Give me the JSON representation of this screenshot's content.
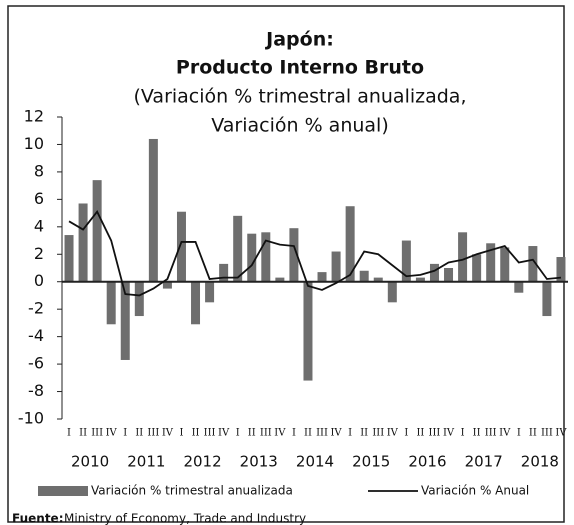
{
  "chart_data": {
    "type": "bar_line",
    "title_lines": [
      "Japón:",
      "Producto Interno Bruto"
    ],
    "subtitle_lines": [
      "(Variación % trimestral anualizada,",
      "Variación % anual)"
    ],
    "categories": [
      "I",
      "II",
      "III",
      "IV",
      "I",
      "II",
      "III",
      "IV",
      "I",
      "II",
      "III",
      "IV",
      "I",
      "II",
      "III",
      "IV",
      "I",
      "II",
      "III",
      "IV",
      "I",
      "II",
      "III",
      "IV",
      "I",
      "II",
      "III",
      "IV",
      "I",
      "II",
      "III",
      "IV",
      "I",
      "II",
      "III",
      "IV"
    ],
    "groups": [
      "2010",
      "2011",
      "2012",
      "2013",
      "2014",
      "2015",
      "2016",
      "2017",
      "2018"
    ],
    "series": [
      {
        "name": "Variación % trimestral anualizada",
        "kind": "bar",
        "color": "#6e6e6e",
        "values": [
          3.4,
          5.7,
          7.4,
          -3.1,
          -5.7,
          -2.5,
          10.4,
          -0.5,
          5.1,
          -3.1,
          -1.5,
          1.3,
          4.8,
          3.5,
          3.6,
          0.3,
          3.9,
          -7.2,
          0.7,
          2.2,
          5.5,
          0.8,
          0.3,
          -1.5,
          3.0,
          0.3,
          1.3,
          1.0,
          3.6,
          2.0,
          2.8,
          2.5,
          -0.8,
          2.6,
          -2.5,
          1.8
        ]
      },
      {
        "name": "Variación % Anual",
        "kind": "line",
        "color": "#111111",
        "values": [
          4.4,
          3.8,
          5.1,
          3.0,
          -0.9,
          -1.0,
          -0.5,
          0.2,
          2.9,
          2.9,
          0.2,
          0.3,
          0.3,
          1.2,
          3.0,
          2.7,
          2.6,
          -0.3,
          -0.6,
          -0.1,
          0.5,
          2.2,
          2.0,
          1.2,
          0.4,
          0.5,
          0.8,
          1.4,
          1.6,
          2.0,
          2.3,
          2.6,
          1.4,
          1.6,
          0.2,
          0.3
        ]
      }
    ],
    "ylim": [
      -10,
      12
    ],
    "yticks": [
      -10,
      -8,
      -6,
      -4,
      -2,
      0,
      2,
      4,
      6,
      8,
      10,
      12
    ],
    "source_label": "Fuente:",
    "source": "Ministry of Economy, Trade and Industry"
  }
}
